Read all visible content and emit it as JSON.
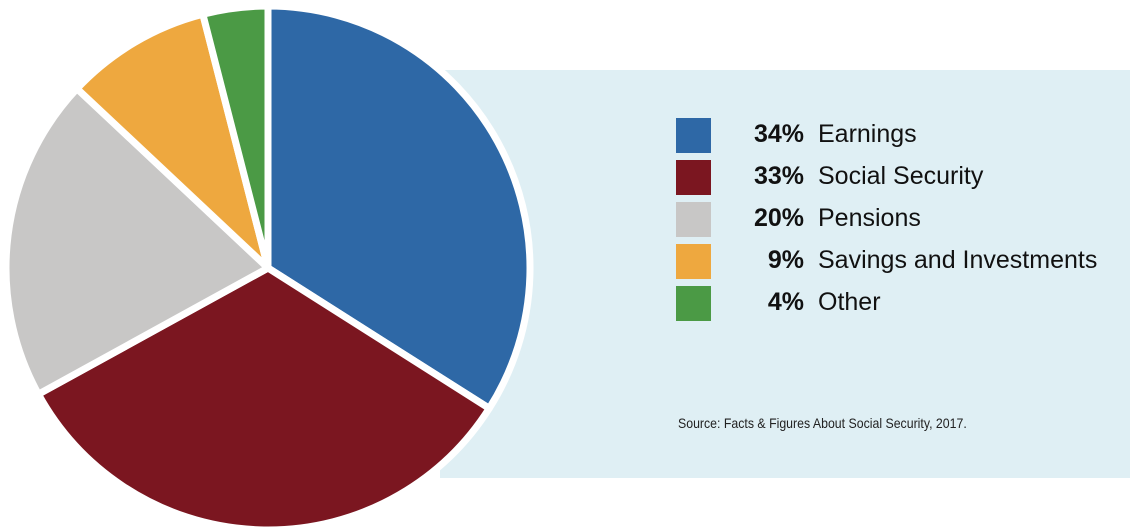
{
  "chart_data": {
    "type": "pie",
    "slices": [
      {
        "label": "Earnings",
        "value": 34,
        "pct_text": "34%",
        "color": "#2e68a6"
      },
      {
        "label": "Social Security",
        "value": 33,
        "pct_text": "33%",
        "color": "#7b1620"
      },
      {
        "label": "Pensions",
        "value": 20,
        "pct_text": "20%",
        "color": "#c8c7c6"
      },
      {
        "label": "Savings and Investments",
        "value": 9,
        "pct_text": "9%",
        "color": "#eea83f"
      },
      {
        "label": "Other",
        "value": 4,
        "pct_text": "4%",
        "color": "#4b9a45"
      }
    ]
  },
  "source": "Source: Facts & Figures About Social Security, 2017.",
  "colors": {
    "panel_background": "#dfeff4"
  }
}
